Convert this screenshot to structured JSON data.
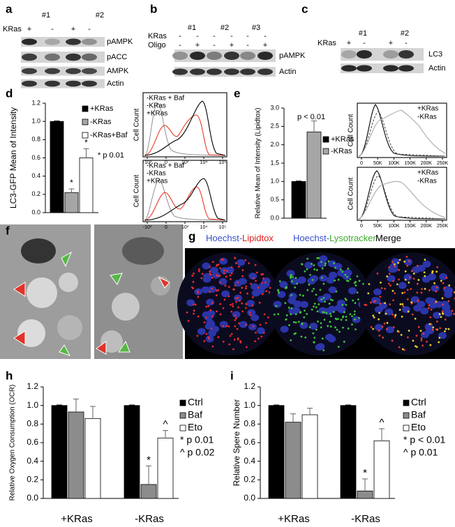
{
  "panels": {
    "a": {
      "label": "a",
      "groups": [
        "#1",
        "#2"
      ],
      "rows": [
        {
          "label": "KRas",
          "signs": [
            "+",
            "-",
            "+",
            "-"
          ]
        }
      ],
      "bands": [
        "pAMPK",
        "pACC",
        "AMPK",
        "Actin"
      ]
    },
    "b": {
      "label": "b",
      "groups": [
        "#1",
        "#2",
        "#3"
      ],
      "rows": [
        {
          "label": "KRas",
          "signs": [
            "-",
            "-",
            "-",
            "-",
            "-",
            "-"
          ]
        },
        {
          "label": "Oligo",
          "signs": [
            "-",
            "+",
            "-",
            "+",
            "-",
            "+"
          ]
        }
      ],
      "bands": [
        "pAMPK",
        "Actin"
      ]
    },
    "c": {
      "label": "c",
      "groups": [
        "#1",
        "#2"
      ],
      "rows": [
        {
          "label": "KRas",
          "signs": [
            "+",
            "-",
            "+",
            "-"
          ]
        }
      ],
      "bands": [
        "LC3",
        "Actin"
      ]
    },
    "d_flow": {
      "ylabel": "Cell Count",
      "xticks": [
        "-10³",
        "0",
        "10³",
        "10⁴",
        "10⁵"
      ],
      "legend": [
        {
          "name": "-KRas + Baf",
          "color": "#e8392b"
        },
        {
          "name": "-KRas",
          "color": "#999999"
        },
        {
          "name": "+KRas",
          "color": "#000000"
        }
      ]
    },
    "e_flow": {
      "ylabel": "Cell Count",
      "xticks": [
        "0",
        "50K",
        "100K",
        "150K",
        "200K",
        "250K"
      ],
      "legend": [
        {
          "name": "+KRas",
          "color": "#000000"
        },
        {
          "name": "-KRas",
          "color": "#999999"
        }
      ]
    },
    "f": {
      "label": "f"
    },
    "g": {
      "label": "g",
      "titles": [
        [
          {
            "text": "Hoechst-",
            "color": "#3a4fd0"
          },
          {
            "text": "Lipidtox",
            "color": "#e02020"
          }
        ],
        [
          {
            "text": "Hoechst-",
            "color": "#3a4fd0"
          },
          {
            "text": "Lysotracker",
            "color": "#3cae2a"
          }
        ],
        [
          {
            "text": "Merge",
            "color": "#000000"
          }
        ]
      ]
    }
  },
  "chart_data": [
    {
      "type": "bar",
      "panel": "d",
      "ylabel": "LC3-GFP Mean of Intensity",
      "ylim": [
        0,
        1.2
      ],
      "yticks": [
        {
          "value": 0,
          "label": "0.0"
        },
        {
          "value": 0.2,
          "label": "0.2"
        },
        {
          "value": 0.4,
          "label": "0.4"
        },
        {
          "value": 0.6,
          "label": "0.6"
        },
        {
          "value": 0.8,
          "label": "0.8"
        },
        {
          "value": 1,
          "label": "1.0"
        },
        {
          "value": 1.2,
          "label": "1.2"
        }
      ],
      "series": [
        {
          "name": "+KRas",
          "color": "#000000",
          "values": [
            1.0
          ],
          "errors": [
            0.005
          ],
          "labels": [
            null
          ]
        },
        {
          "name": "-KRas",
          "color": "#a6a6a6",
          "values": [
            0.22
          ],
          "errors": [
            0.04
          ],
          "labels": [
            "*"
          ]
        },
        {
          "name": "-KRas+Baf",
          "color": "#ffffff",
          "values": [
            0.6
          ],
          "errors": [
            0.1
          ],
          "labels": [
            "*"
          ]
        }
      ],
      "notes": [
        "* p 0.01"
      ]
    },
    {
      "type": "bar",
      "panel": "e",
      "ylabel": "Relative Mean of Intensity (Lipidtox)",
      "ylim": [
        0,
        3
      ],
      "yticks": [
        {
          "value": 0,
          "label": "0.0"
        },
        {
          "value": 0.5,
          "label": "0.5"
        },
        {
          "value": 1,
          "label": "1.0"
        },
        {
          "value": 1.5,
          "label": "1.5"
        },
        {
          "value": 2,
          "label": "2.0"
        },
        {
          "value": 2.5,
          "label": "2.5"
        },
        {
          "value": 3,
          "label": "3.0"
        }
      ],
      "series": [
        {
          "name": "+KRas",
          "color": "#000000",
          "values": [
            1.0
          ],
          "errors": [
            0.01
          ],
          "labels": [
            null
          ]
        },
        {
          "name": "-KRas",
          "color": "#a6a6a6",
          "values": [
            2.35
          ],
          "errors": [
            0.3
          ],
          "labels": [
            null
          ]
        }
      ],
      "notes": [
        "p < 0.01"
      ]
    },
    {
      "type": "bar",
      "panel": "h",
      "ylabel": "Relative Oxygen Consumption (OCR)",
      "categories": [
        "+KRas",
        "-KRas"
      ],
      "ylim": [
        0,
        1.2
      ],
      "yticks": [
        {
          "value": 0,
          "label": "0.0"
        },
        {
          "value": 0.2,
          "label": "0.2"
        },
        {
          "value": 0.4,
          "label": "0.4"
        },
        {
          "value": 0.6,
          "label": "0.6"
        },
        {
          "value": 0.8,
          "label": "0.8"
        },
        {
          "value": 1,
          "label": "1.0"
        },
        {
          "value": 1.2,
          "label": "1.2"
        }
      ],
      "series": [
        {
          "name": "Ctrl",
          "color": "#000000",
          "values": [
            1.0,
            1.0
          ],
          "errors": [
            0.005,
            0.005
          ],
          "labels": [
            null,
            null
          ]
        },
        {
          "name": "Baf",
          "color": "#8c8c8c",
          "values": [
            0.93,
            0.15
          ],
          "errors": [
            0.14,
            0.2
          ],
          "labels": [
            null,
            "*"
          ]
        },
        {
          "name": "Eto",
          "color": "#ffffff",
          "values": [
            0.86,
            0.65
          ],
          "errors": [
            0.13,
            0.08
          ],
          "labels": [
            null,
            "^"
          ]
        }
      ],
      "notes": [
        "* p 0.01",
        "^ p 0.02"
      ]
    },
    {
      "type": "bar",
      "panel": "i",
      "ylabel": "Relative Spere Number",
      "categories": [
        "+KRas",
        "-KRas"
      ],
      "ylim": [
        0,
        1.2
      ],
      "yticks": [
        {
          "value": 0,
          "label": "0.0"
        },
        {
          "value": 0.2,
          "label": "0.2"
        },
        {
          "value": 0.4,
          "label": "0.4"
        },
        {
          "value": 0.6,
          "label": "0.6"
        },
        {
          "value": 0.8,
          "label": "0.8"
        },
        {
          "value": 1,
          "label": "1.0"
        },
        {
          "value": 1.2,
          "label": "1.2"
        }
      ],
      "series": [
        {
          "name": "Ctrl",
          "color": "#000000",
          "values": [
            1.0,
            1.0
          ],
          "errors": [
            0.005,
            0.005
          ],
          "labels": [
            null,
            null
          ]
        },
        {
          "name": "Baf",
          "color": "#8c8c8c",
          "values": [
            0.82,
            0.08
          ],
          "errors": [
            0.09,
            0.13
          ],
          "labels": [
            null,
            "*"
          ]
        },
        {
          "name": "Eto",
          "color": "#ffffff",
          "values": [
            0.9,
            0.62
          ],
          "errors": [
            0.07,
            0.13
          ],
          "labels": [
            null,
            "^"
          ]
        }
      ],
      "notes": [
        "* p < 0.01",
        "^ p 0.01"
      ]
    }
  ]
}
